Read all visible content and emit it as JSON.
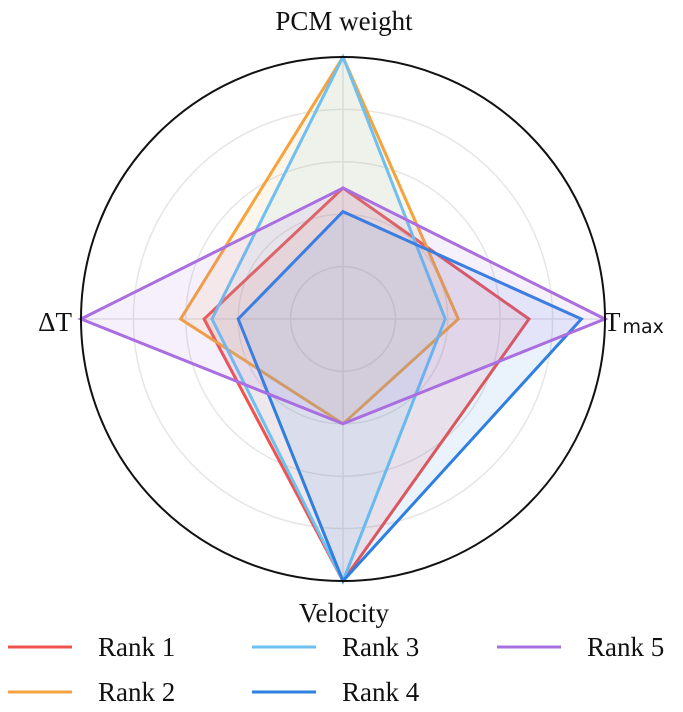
{
  "chart_data": {
    "type": "radar",
    "axes": [
      {
        "label": "PCM weight",
        "sub": ""
      },
      {
        "label": "T",
        "sub": "max"
      },
      {
        "label": "Velocity",
        "sub": ""
      },
      {
        "label": "ΔT",
        "sub": ""
      }
    ],
    "range": [
      0,
      1
    ],
    "grid": true,
    "legend_position": "bottom",
    "series": [
      {
        "name": "Rank 1",
        "color": "#ef5350",
        "values": [
          0.5,
          0.71,
          1.0,
          0.53
        ]
      },
      {
        "name": "Rank 2",
        "color": "#f5a33c",
        "values": [
          1.0,
          0.44,
          0.4,
          0.62
        ]
      },
      {
        "name": "Rank 3",
        "color": "#6ec0f0",
        "values": [
          1.0,
          0.39,
          1.0,
          0.5
        ]
      },
      {
        "name": "Rank 4",
        "color": "#2f7fe0",
        "values": [
          0.41,
          0.91,
          1.0,
          0.4
        ]
      },
      {
        "name": "Rank 5",
        "color": "#a96ee0",
        "values": [
          0.5,
          1.0,
          0.4,
          1.0
        ]
      }
    ]
  }
}
